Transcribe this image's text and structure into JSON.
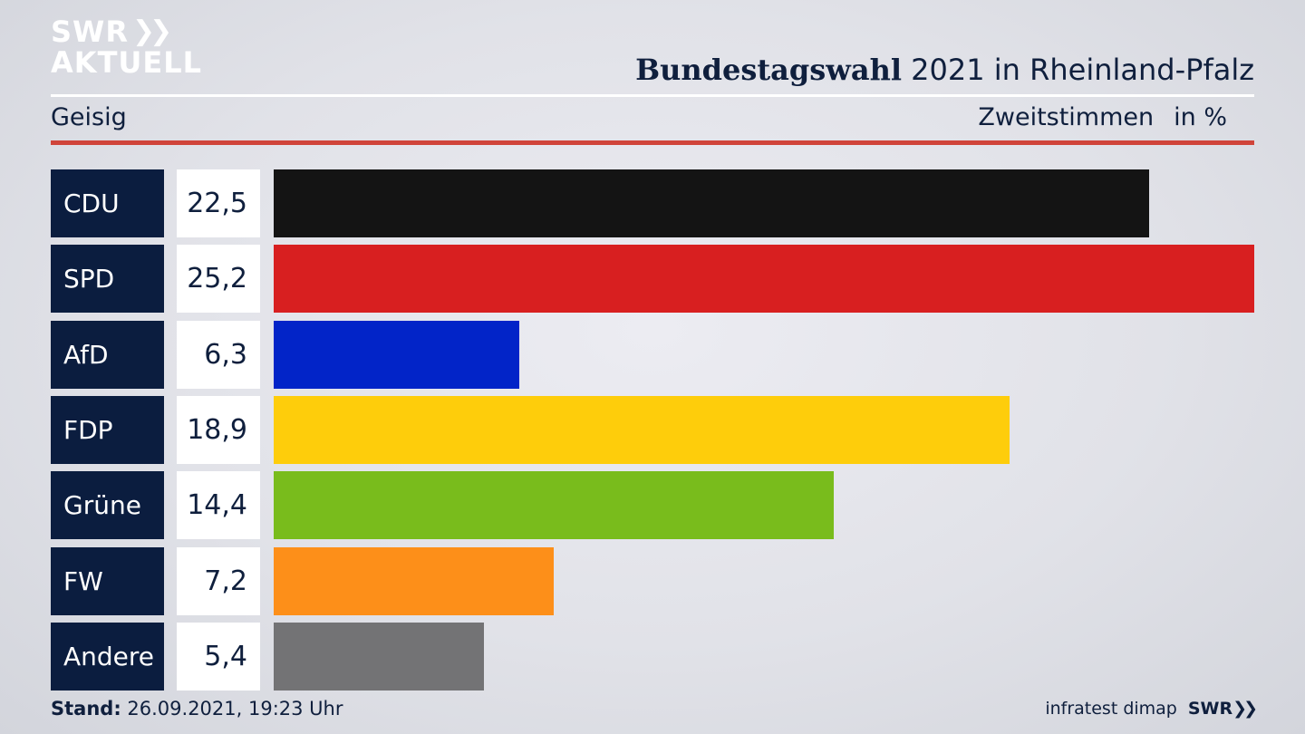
{
  "logo": {
    "line1": "SWR",
    "line2": "AKTUELL"
  },
  "header": {
    "title_bold": "Bundestagswahl",
    "title_rest": " 2021 in Rheinland-Pfalz",
    "location": "Geisig",
    "measure": "Zweitstimmen",
    "unit": "in %"
  },
  "chart_data": {
    "type": "bar",
    "orientation": "horizontal",
    "categories": [
      "CDU",
      "SPD",
      "AfD",
      "FDP",
      "Grüne",
      "FW",
      "Andere"
    ],
    "values": [
      22.5,
      25.2,
      6.3,
      18.9,
      14.4,
      7.2,
      5.4
    ],
    "value_labels": [
      "22,5",
      "25,2",
      "6,3",
      "18,9",
      "14,4",
      "7,2",
      "5,4"
    ],
    "colors": [
      "#141414",
      "#d81f20",
      "#0224c8",
      "#fecd0b",
      "#79bc1c",
      "#fd8f19",
      "#737375"
    ],
    "xlim": [
      0,
      25.2
    ]
  },
  "footer": {
    "stand_label": "Stand:",
    "stand_value": " 26.09.2021, 19:23 Uhr",
    "source": "infratest dimap",
    "brand": "SWR"
  }
}
